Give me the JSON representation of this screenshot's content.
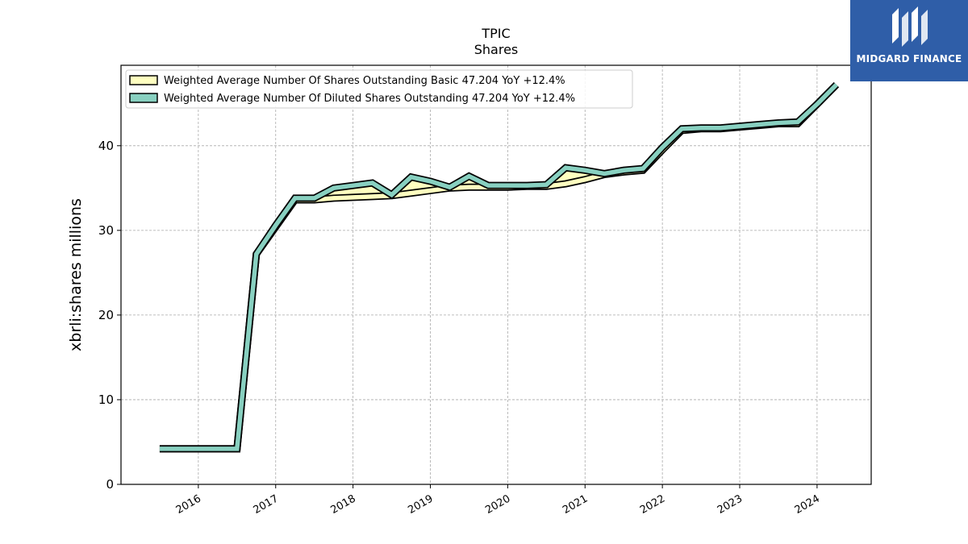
{
  "chart_data": {
    "type": "line",
    "title": "TPIC",
    "subtitle": "Shares",
    "ylabel": "xbrli:shares millions",
    "xlabel": "",
    "xlim": [
      2015.0,
      2024.7
    ],
    "ylim": [
      0,
      49.5
    ],
    "yticks": [
      0,
      10,
      20,
      30,
      40
    ],
    "xticks": [
      "2016",
      "2017",
      "2018",
      "2019",
      "2020",
      "2021",
      "2022",
      "2023",
      "2024"
    ],
    "grid": true,
    "legend_position": "top-left",
    "series": [
      {
        "name": "Weighted Average Number Of Shares Outstanding Basic  47.204 YoY +12.4%",
        "color": "#ffffc0",
        "x": [
          "2015-07-01",
          "2015-10-01",
          "2016-01-01",
          "2016-04-01",
          "2016-07-01",
          "2016-10-01",
          "2017-01-01",
          "2017-04-01",
          "2017-07-01",
          "2017-10-01",
          "2018-01-01",
          "2018-04-01",
          "2018-07-01",
          "2018-10-01",
          "2019-01-01",
          "2019-04-01",
          "2019-07-01",
          "2019-10-01",
          "2020-01-01",
          "2020-04-01",
          "2020-07-01",
          "2020-10-01",
          "2021-01-01",
          "2021-04-01",
          "2021-07-01",
          "2021-10-01",
          "2022-01-01",
          "2022-04-01",
          "2022-07-01",
          "2022-10-01",
          "2023-01-01",
          "2023-04-01",
          "2023-07-01",
          "2023-10-01",
          "2024-01-01",
          "2024-04-01"
        ],
        "values": [
          4.2,
          4.2,
          4.2,
          4.2,
          4.2,
          27.2,
          30.4,
          33.6,
          33.6,
          33.8,
          33.9,
          34.0,
          34.1,
          34.4,
          34.7,
          35.0,
          35.1,
          35.1,
          35.1,
          35.2,
          35.2,
          35.5,
          36.0,
          36.6,
          36.9,
          37.1,
          39.5,
          41.8,
          42.0,
          42.0,
          42.2,
          42.4,
          42.6,
          42.6,
          44.9,
          47.204
        ]
      },
      {
        "name": "Weighted Average Number Of Diluted Shares Outstanding  47.204 YoY +12.4%",
        "color": "#88d0c0",
        "x": [
          "2015-07-01",
          "2015-10-01",
          "2016-01-01",
          "2016-04-01",
          "2016-07-01",
          "2016-10-01",
          "2017-01-01",
          "2017-04-01",
          "2017-07-01",
          "2017-10-01",
          "2018-01-01",
          "2018-04-01",
          "2018-07-01",
          "2018-10-01",
          "2019-01-01",
          "2019-04-01",
          "2019-07-01",
          "2019-10-01",
          "2020-01-01",
          "2020-04-01",
          "2020-07-01",
          "2020-10-01",
          "2021-01-01",
          "2021-04-01",
          "2021-07-01",
          "2021-10-01",
          "2022-01-01",
          "2022-04-01",
          "2022-07-01",
          "2022-10-01",
          "2023-01-01",
          "2023-04-01",
          "2023-07-01",
          "2023-10-01",
          "2024-01-01",
          "2024-04-01"
        ],
        "values": [
          4.2,
          4.2,
          4.2,
          4.2,
          4.2,
          27.2,
          30.6,
          33.8,
          33.8,
          35.0,
          35.3,
          35.6,
          34.2,
          36.3,
          35.8,
          35.1,
          36.4,
          35.3,
          35.3,
          35.3,
          35.4,
          37.4,
          37.1,
          36.7,
          37.1,
          37.3,
          39.8,
          42.0,
          42.1,
          42.1,
          42.3,
          42.5,
          42.7,
          42.8,
          44.9,
          47.204
        ]
      }
    ]
  },
  "logo": {
    "text": "MIDGARD FINANCE",
    "bg_color": "#2f5ea8"
  }
}
